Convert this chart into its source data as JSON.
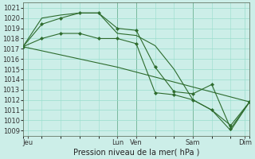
{
  "title": "Pression niveau de la mer( hPa )",
  "bg_color": "#cceee8",
  "grid_color": "#99ddcc",
  "line_color": "#2d6b2d",
  "marker_color": "#2d6b2d",
  "ylim": [
    1008.5,
    1021.5
  ],
  "yticks": [
    1009,
    1010,
    1011,
    1012,
    1013,
    1014,
    1015,
    1016,
    1017,
    1018,
    1019,
    1020,
    1021
  ],
  "xlim": [
    0,
    24
  ],
  "xlabel_ticks_pos": [
    0.5,
    10,
    12,
    18,
    23.5
  ],
  "xlabel_ticks_labels": [
    "Jeu",
    "Lun",
    "Ven",
    "Sam",
    "Dim"
  ],
  "vlines_x": [
    10,
    12,
    18,
    24
  ],
  "series": [
    {
      "name": "line1_no_marker",
      "x": [
        0,
        2,
        4,
        6,
        8,
        10,
        12,
        14,
        16,
        18,
        20,
        22,
        24
      ],
      "y": [
        1017.2,
        1020.0,
        1020.3,
        1020.5,
        1020.5,
        1018.5,
        1018.3,
        1017.3,
        1015.0,
        1012.0,
        1011.0,
        1009.0,
        1011.8
      ],
      "markers": false
    },
    {
      "name": "line2_with_markers",
      "x": [
        0,
        2,
        4,
        6,
        8,
        10,
        12,
        14,
        16,
        18,
        20,
        22,
        24
      ],
      "y": [
        1017.2,
        1019.4,
        1020.0,
        1020.5,
        1020.5,
        1019.0,
        1018.8,
        1015.2,
        1012.8,
        1012.6,
        1013.5,
        1009.2,
        1011.8
      ],
      "markers": true
    },
    {
      "name": "line3_with_markers",
      "x": [
        0,
        2,
        4,
        6,
        8,
        10,
        12,
        14,
        16,
        18,
        20,
        22,
        24
      ],
      "y": [
        1017.2,
        1018.0,
        1018.5,
        1018.5,
        1018.0,
        1018.0,
        1017.5,
        1012.7,
        1012.5,
        1012.0,
        1011.0,
        1009.5,
        1011.8
      ],
      "markers": true
    },
    {
      "name": "diagonal_no_marker",
      "x": [
        0,
        10,
        24
      ],
      "y": [
        1017.2,
        1015.2,
        1011.8
      ],
      "markers": false
    }
  ],
  "tick_label_fontsize": 6.0,
  "title_fontsize": 7.0
}
